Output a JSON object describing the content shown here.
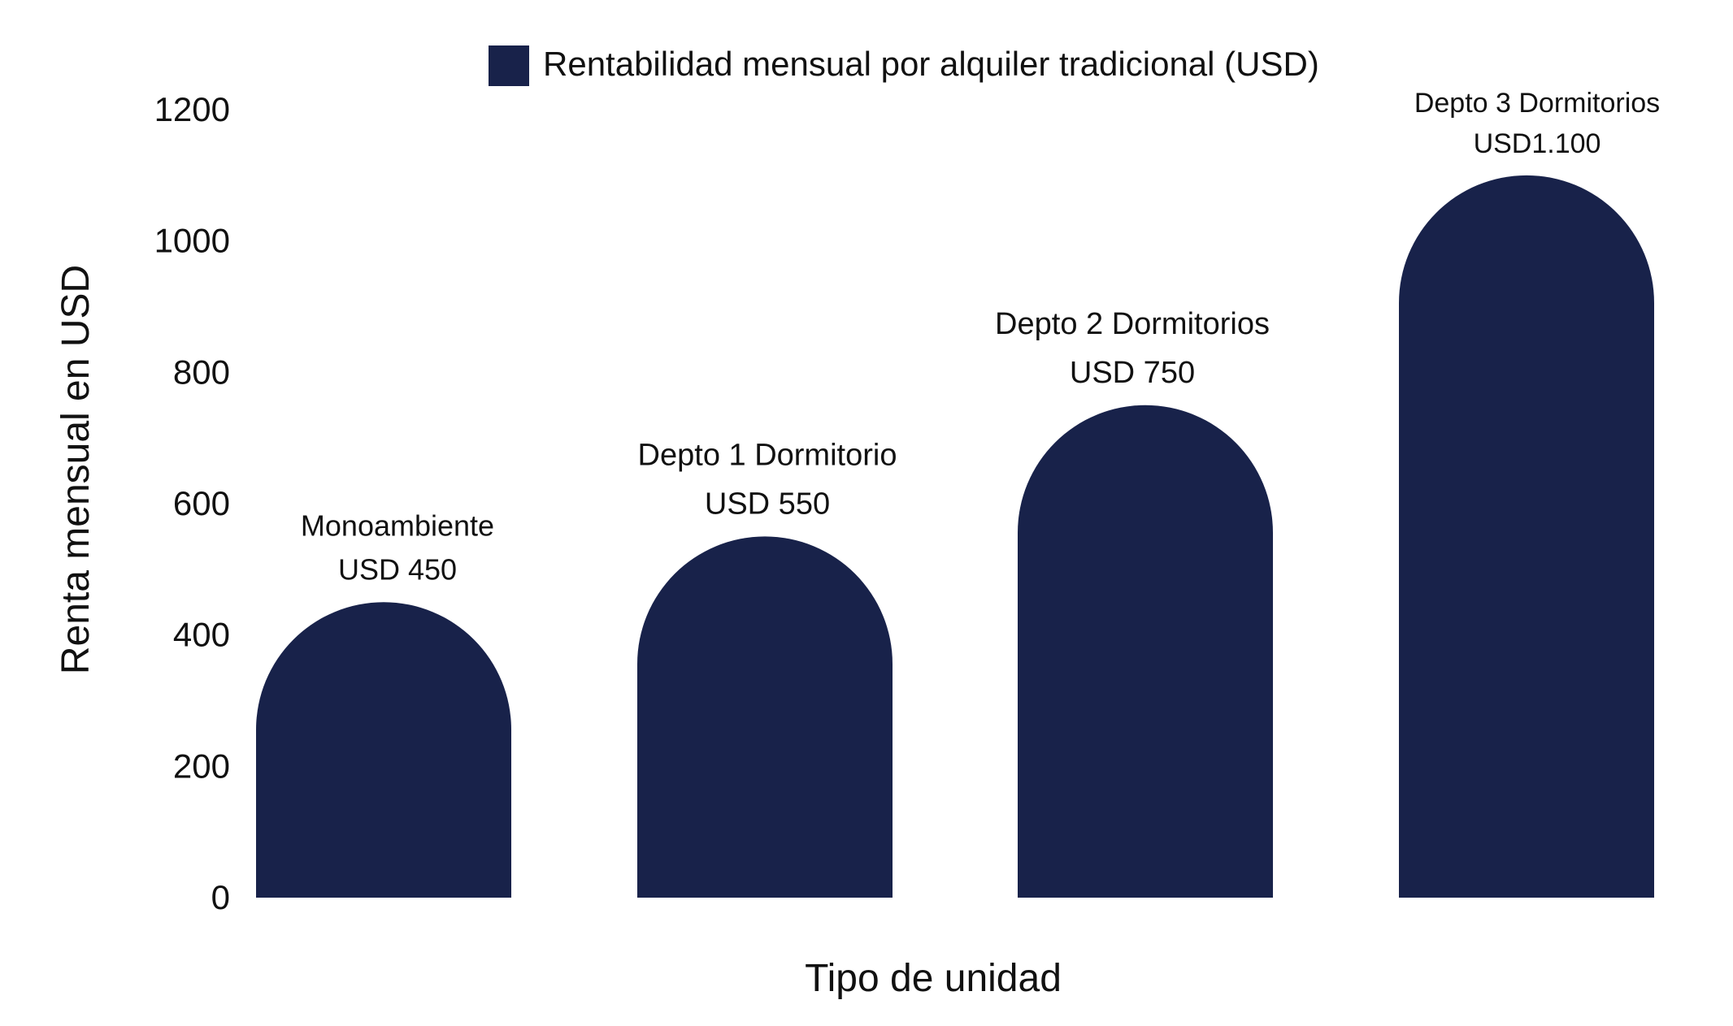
{
  "chart_data": {
    "type": "bar",
    "categories": [
      "Monoambiente",
      "Depto 1 Dormitorio",
      "Depto 2 Dormitorios",
      "Depto 3 Dormitorios"
    ],
    "series": [
      {
        "name": "Rentabilidad mensual por alquiler tradicional (USD)",
        "values": [
          450,
          550,
          750,
          1100
        ]
      }
    ],
    "data_labels": [
      [
        "Monoambiente",
        "USD 450"
      ],
      [
        "Depto 1 Dormitorio",
        "USD 550"
      ],
      [
        "Depto 2 Dormitorios",
        "USD 750"
      ],
      [
        "Depto 3 Dormitorios",
        "USD1.100"
      ]
    ],
    "xlabel": "Tipo de unidad",
    "ylabel": "Renta mensual en USD",
    "ylim": [
      0,
      1200
    ],
    "yticks": [
      "0",
      "200",
      "400",
      "600",
      "800",
      "1000",
      "1200"
    ],
    "grid": false,
    "legend_position": "top-center",
    "bar_shape": "rounded-top",
    "colors": {
      "bar": "#18224a",
      "text": "#111111",
      "background": "#ffffff"
    }
  }
}
